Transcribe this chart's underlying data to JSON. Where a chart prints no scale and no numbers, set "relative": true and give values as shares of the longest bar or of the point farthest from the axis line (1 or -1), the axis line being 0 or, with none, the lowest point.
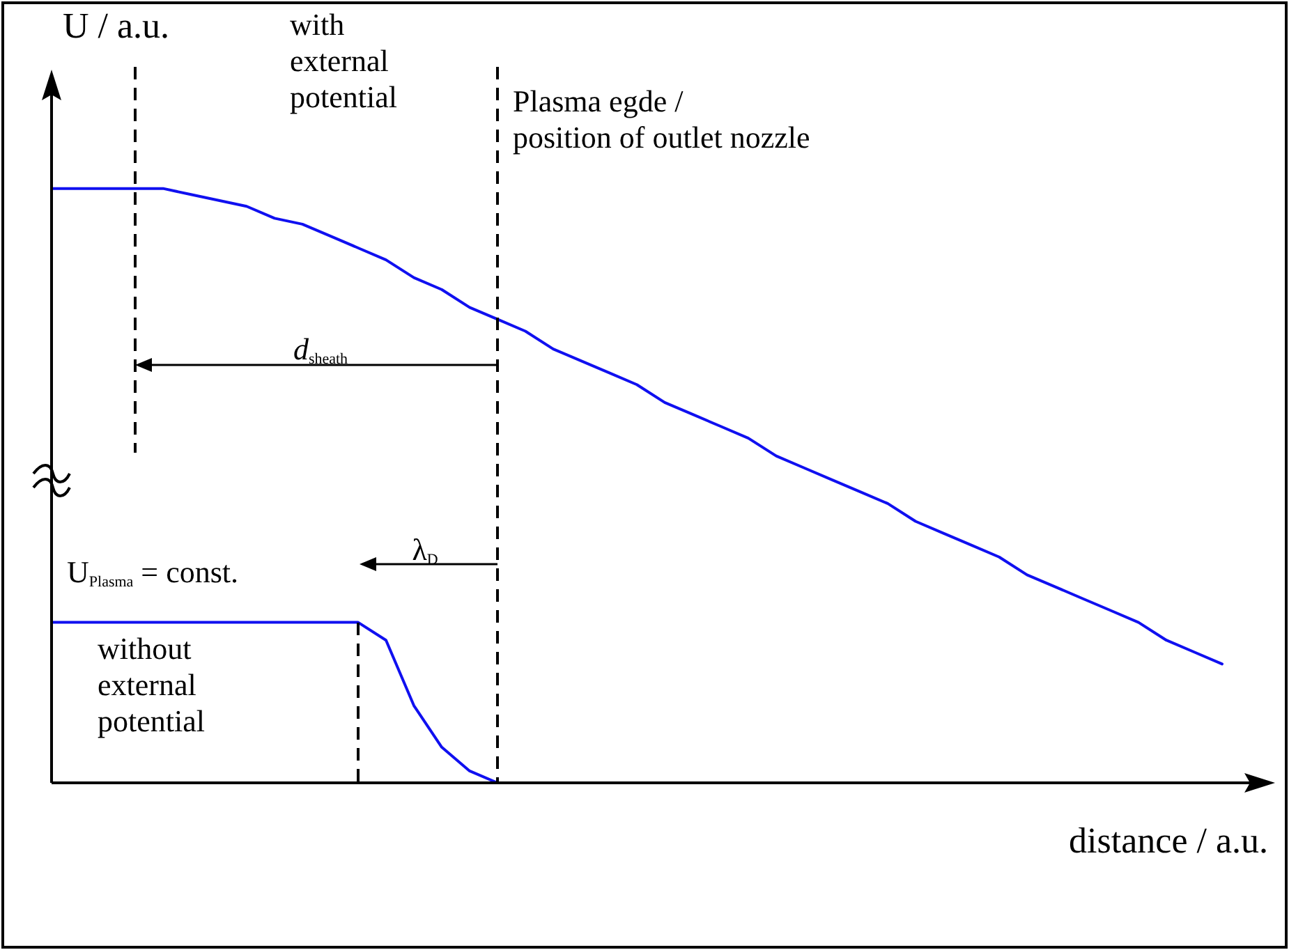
{
  "chart_data": {
    "type": "line",
    "relative": true,
    "xlabel": "distance / a.u.",
    "ylabel": "U / a.u.",
    "legend": false,
    "grid": false,
    "tick_labels": false,
    "marker": "none",
    "line_style": "solid",
    "categories": [
      null,
      null,
      null,
      null,
      null,
      null,
      null,
      null,
      null,
      null,
      null,
      null,
      null,
      null,
      null,
      null,
      null,
      null,
      null,
      null,
      null,
      null,
      null,
      null,
      null,
      null,
      null,
      null,
      null,
      null,
      null,
      null,
      null,
      null,
      null,
      null,
      null,
      null,
      null,
      null,
      null,
      null,
      null
    ],
    "series": [
      {
        "color": "#1010f0",
        "values": [
          1,
          1,
          1,
          1,
          1,
          0.99,
          0.98,
          0.97,
          0.95,
          0.94,
          0.92,
          0.9,
          0.88,
          0.85,
          0.83,
          0.8,
          0.78,
          0.76,
          0.73,
          0.71,
          0.69,
          0.67,
          0.64,
          0.62,
          0.6,
          0.58,
          0.55,
          0.53,
          0.51,
          0.49,
          0.47,
          0.44,
          0.42,
          0.4,
          0.38,
          0.35,
          0.33,
          0.31,
          0.29,
          0.27,
          0.24,
          0.22,
          0.2
        ]
      },
      {
        "color": "#1010f0",
        "values": [
          0.27,
          0.27,
          0.27,
          0.27,
          0.27,
          0.27,
          0.27,
          0.27,
          0.27,
          0.27,
          0.27,
          0.27,
          0.24,
          0.13,
          0.06,
          0.02,
          0,
          null,
          null,
          null,
          null,
          null,
          null,
          null,
          null,
          null,
          null,
          null,
          null,
          null,
          null,
          null,
          null,
          null,
          null,
          null,
          null,
          null,
          null,
          null,
          null,
          null,
          null
        ]
      }
    ],
    "annotations": [
      "with external potential",
      "Plasma egde /\nposition of outlet nozzle",
      "d$_{sheath}$",
      "λ$_{D}$",
      "U$_{Plasma}$ = const.",
      "without external potential"
    ]
  }
}
